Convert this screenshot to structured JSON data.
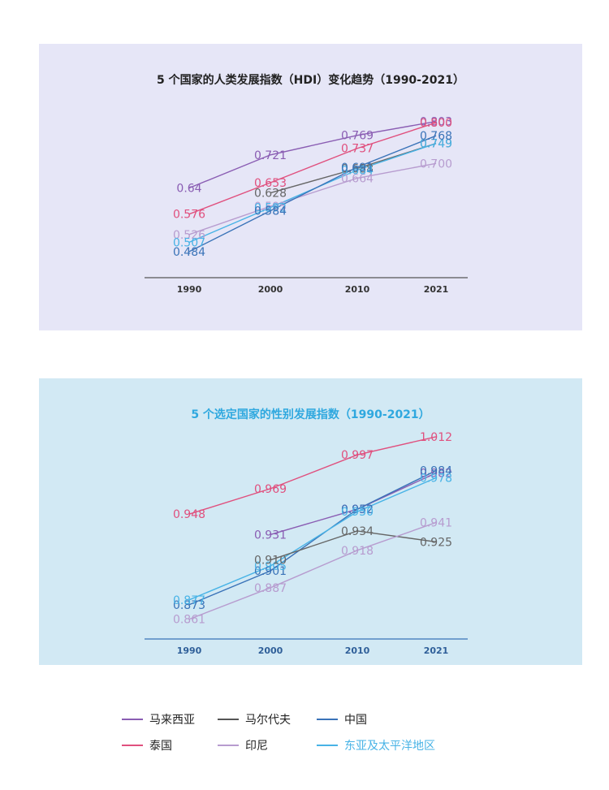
{
  "chart_data": [
    {
      "type": "line",
      "title": "5 个国家的人类发展指数（HDI）变化趋势（1990-2021）",
      "categories": [
        "1990",
        "2000",
        "2010",
        "2021"
      ],
      "ylim": [
        0.45,
        0.83
      ],
      "series": [
        {
          "name": "马来西亚",
          "color": "#8a5db3",
          "values": [
            0.64,
            0.721,
            0.769,
            0.803
          ],
          "labels": [
            "0.64",
            "0.721",
            "0.769",
            "0.803"
          ]
        },
        {
          "name": "泰国",
          "color": "#e0507e",
          "values": [
            0.576,
            0.653,
            0.737,
            0.8
          ],
          "labels": [
            "0.576",
            "0.653",
            "0.737",
            "0.800"
          ]
        },
        {
          "name": "马尔代夫",
          "color": "#666666",
          "values": [
            null,
            0.628,
            0.688,
            0.749
          ],
          "labels": [
            "",
            "0.628",
            "0.688",
            "0.749"
          ]
        },
        {
          "name": "印尼",
          "color": "#b79ccf",
          "values": [
            0.526,
            0.595,
            0.664,
            0.7
          ],
          "labels": [
            "0.526",
            "0.595",
            "0.664",
            "0.700"
          ]
        },
        {
          "name": "东亚及太平洋地区",
          "color": "#48b3e6",
          "values": [
            0.507,
            0.592,
            0.684,
            0.749
          ],
          "labels": [
            "0.507",
            "0.592",
            "0.684",
            "0.749"
          ]
        },
        {
          "name": "中国",
          "color": "#3a73b8",
          "values": [
            0.484,
            0.584,
            0.691,
            0.768
          ],
          "labels": [
            "0.484",
            "0.584",
            "0.691",
            "0.768"
          ]
        }
      ]
    },
    {
      "type": "line",
      "title": "5 个选定国家的性别发展指数（1990-2021）",
      "categories": [
        "1990",
        "2000",
        "2010",
        "2021"
      ],
      "ylim": [
        0.85,
        1.02
      ],
      "series": [
        {
          "name": "泰国",
          "color": "#e0507e",
          "values": [
            0.948,
            0.969,
            0.997,
            1.012
          ],
          "labels": [
            "0.948",
            "0.969",
            "0.997",
            "1.012"
          ]
        },
        {
          "name": "马来西亚",
          "color": "#8a5db3",
          "values": [
            null,
            0.931,
            0.952,
            0.982
          ],
          "labels": [
            "",
            "0.931",
            "0.952",
            "0.982"
          ]
        },
        {
          "name": "中国",
          "color": "#3a73b8",
          "values": [
            0.873,
            0.901,
            0.952,
            0.984
          ],
          "labels": [
            "0.873",
            "0.901",
            "0.952",
            "0.984"
          ]
        },
        {
          "name": "东亚及太平洋地区",
          "color": "#48b3e6",
          "values": [
            0.877,
            0.905,
            0.95,
            0.978
          ],
          "labels": [
            "0.877",
            "0.905",
            "0.950",
            "0.978"
          ]
        },
        {
          "name": "马尔代夫",
          "color": "#666666",
          "values": [
            null,
            0.91,
            0.934,
            0.925
          ],
          "labels": [
            "",
            "0.910",
            "0.934",
            "0.925"
          ]
        },
        {
          "name": "印尼",
          "color": "#b79ccf",
          "values": [
            0.861,
            0.887,
            0.918,
            0.941
          ],
          "labels": [
            "0.861",
            "0.887",
            "0.918",
            "0.941"
          ]
        }
      ]
    }
  ],
  "legend": [
    {
      "name": "马来西亚",
      "color": "#8a5db3"
    },
    {
      "name": "马尔代夫",
      "color": "#555555"
    },
    {
      "name": "中国",
      "color": "#3a73b8"
    },
    {
      "name": "泰国",
      "color": "#e0507e"
    },
    {
      "name": "印尼",
      "color": "#b79ccf"
    },
    {
      "name": "东亚及太平洋地区",
      "color": "#48b3e6"
    }
  ]
}
